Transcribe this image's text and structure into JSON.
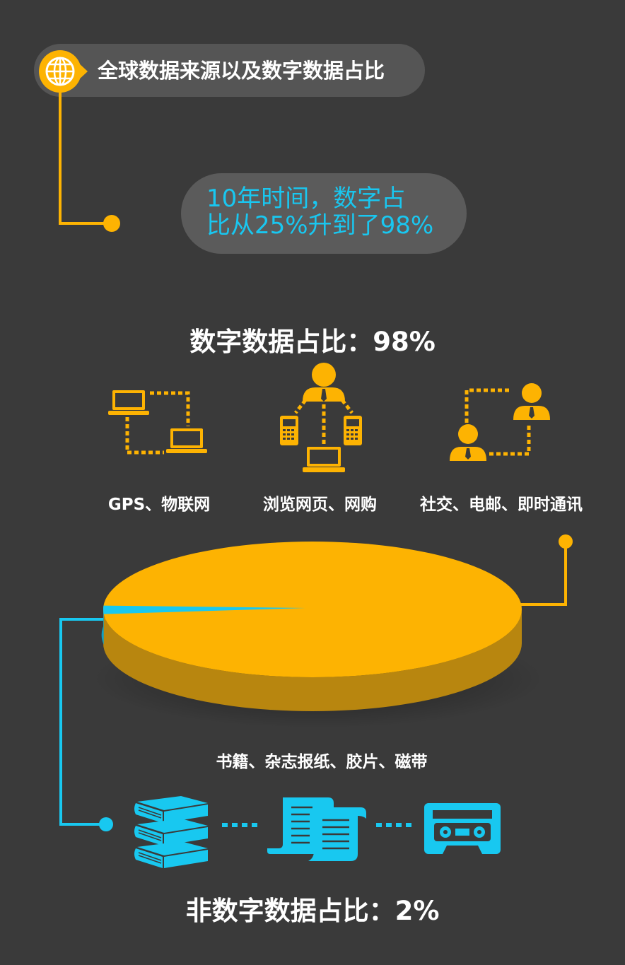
{
  "header": {
    "title": "全球数据来源以及数字数据占比",
    "subtitle_line1": "10年时间，数字占",
    "subtitle_line2": "比从25%升到了98%"
  },
  "digital": {
    "title": "数字数据占比：98%",
    "categories": [
      {
        "label": "GPS、物联网",
        "icon": "laptop-network-icon"
      },
      {
        "label": "浏览网页、网购",
        "icon": "person-phones-laptop-icon"
      },
      {
        "label": "社交、电邮、即时通讯",
        "icon": "people-connection-icon"
      }
    ]
  },
  "analog": {
    "title": "非数字数据占比：2%",
    "label": "书籍、杂志报纸、胶片、磁带",
    "icons": [
      "books-icon",
      "scroll-paper-icon",
      "cassette-tape-icon"
    ]
  },
  "colors": {
    "background": "#3a3a3a",
    "digital": "#fdb302",
    "digital_side": "#b8860f",
    "analog": "#18c8f0",
    "pill": "#555555"
  },
  "chart_data": {
    "type": "pie",
    "categories": [
      "数字数据",
      "非数字数据"
    ],
    "values": [
      98,
      2
    ]
  }
}
